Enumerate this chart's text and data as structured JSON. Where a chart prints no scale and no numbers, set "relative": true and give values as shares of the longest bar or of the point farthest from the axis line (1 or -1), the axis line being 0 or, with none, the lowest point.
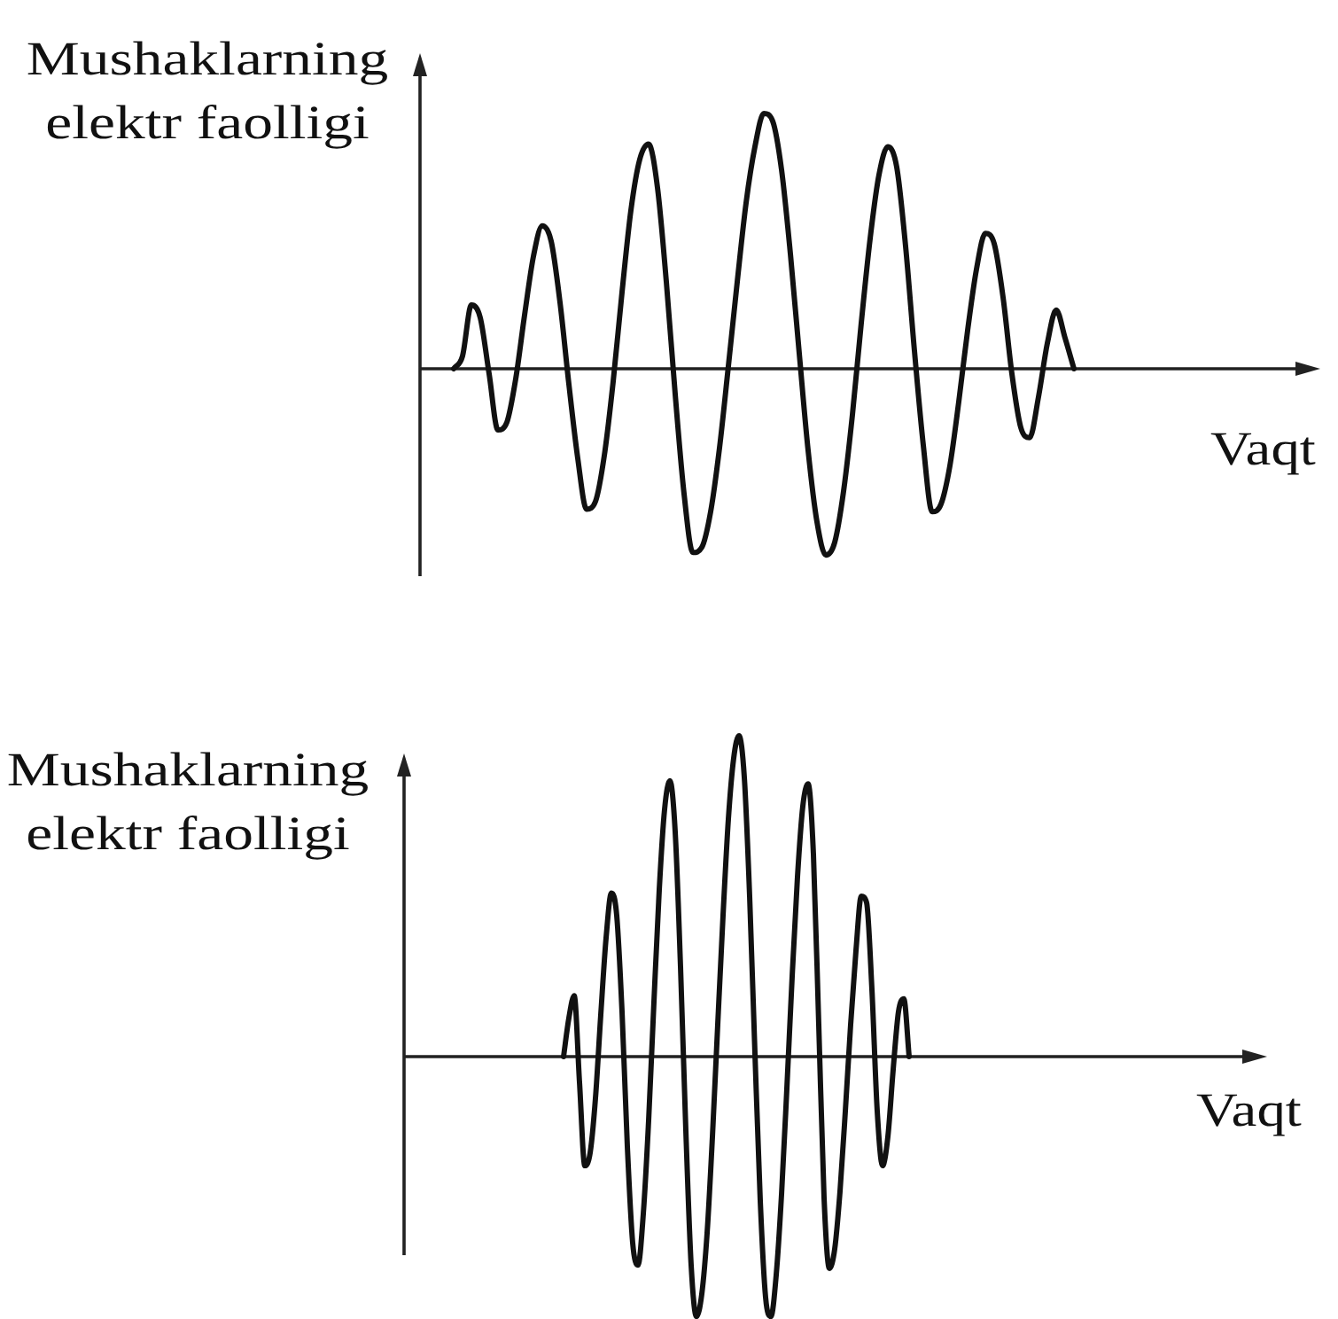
{
  "chart_data": [
    {
      "type": "line",
      "relative": true,
      "ylabel": "Mushaklarning elektr faolligi",
      "xlabel": "Vaqt",
      "color": "#111111",
      "categories": [
        null,
        null,
        null,
        null,
        null,
        null,
        null,
        null,
        null,
        null,
        null,
        null,
        null,
        null,
        null,
        null,
        null,
        null,
        null,
        null,
        null,
        null,
        null,
        null,
        null,
        null,
        null,
        null,
        null,
        null,
        null,
        null,
        null,
        null,
        null,
        null,
        null,
        null,
        null,
        null,
        null,
        null,
        null,
        null,
        null,
        null,
        null,
        null,
        null,
        null,
        null,
        null,
        null,
        null,
        null,
        null,
        null,
        null,
        null,
        null,
        null,
        null,
        null,
        null,
        null,
        null,
        null,
        null,
        null,
        null,
        null
      ],
      "values": [
        0,
        0.05,
        0.25,
        0.2,
        -0.02,
        -0.24,
        -0.21,
        -0.04,
        0.21,
        0.44,
        0.56,
        0.5,
        0.26,
        -0.06,
        -0.35,
        -0.55,
        -0.52,
        -0.34,
        -0.05,
        0.3,
        0.62,
        0.82,
        0.88,
        0.71,
        0.34,
        -0.1,
        -0.49,
        -0.72,
        -0.7,
        -0.56,
        -0.31,
        0.01,
        0.34,
        0.65,
        0.87,
        1,
        0.97,
        0.78,
        0.45,
        0.06,
        -0.32,
        -0.6,
        -0.73,
        -0.68,
        -0.48,
        -0.18,
        0.18,
        0.51,
        0.76,
        0.87,
        0.79,
        0.48,
        0.07,
        -0.3,
        -0.56,
        -0.53,
        -0.38,
        -0.13,
        0.15,
        0.39,
        0.53,
        0.49,
        0.28,
        -0.02,
        -0.23,
        -0.27,
        -0.11,
        0.1,
        0.23,
        0.12,
        0
      ]
    },
    {
      "type": "line",
      "relative": true,
      "ylabel": "Mushaklarning elektr faolligi",
      "xlabel": "Vaqt",
      "color": "#111111",
      "categories": [
        null,
        null,
        null,
        null,
        null,
        null,
        null,
        null,
        null,
        null,
        null,
        null,
        null,
        null,
        null,
        null,
        null,
        null,
        null,
        null,
        null,
        null,
        null,
        null,
        null,
        null,
        null,
        null,
        null,
        null,
        null,
        null,
        null,
        null,
        null,
        null,
        null,
        null,
        null,
        null,
        null,
        null,
        null,
        null,
        null,
        null,
        null,
        null,
        null,
        null,
        null,
        null,
        null,
        null,
        null,
        null,
        null,
        null,
        null,
        null,
        null,
        null,
        null,
        null,
        null,
        null
      ],
      "values": [
        0,
        0.12,
        0.19,
        -0.08,
        -0.34,
        -0.3,
        -0.13,
        0.13,
        0.37,
        0.51,
        0.44,
        0.14,
        -0.28,
        -0.58,
        -0.65,
        -0.49,
        -0.2,
        0.17,
        0.52,
        0.77,
        0.86,
        0.7,
        0.28,
        -0.23,
        -0.65,
        -0.81,
        -0.74,
        -0.55,
        -0.25,
        0.1,
        0.44,
        0.74,
        0.93,
        1,
        0.87,
        0.5,
        0.01,
        -0.45,
        -0.75,
        -0.81,
        -0.68,
        -0.43,
        -0.1,
        0.25,
        0.56,
        0.78,
        0.85,
        0.63,
        0.1,
        -0.44,
        -0.66,
        -0.6,
        -0.42,
        -0.17,
        0.1,
        0.33,
        0.5,
        0.48,
        0.21,
        -0.17,
        -0.34,
        -0.25,
        -0.04,
        0.14,
        0.18,
        0
      ]
    }
  ]
}
